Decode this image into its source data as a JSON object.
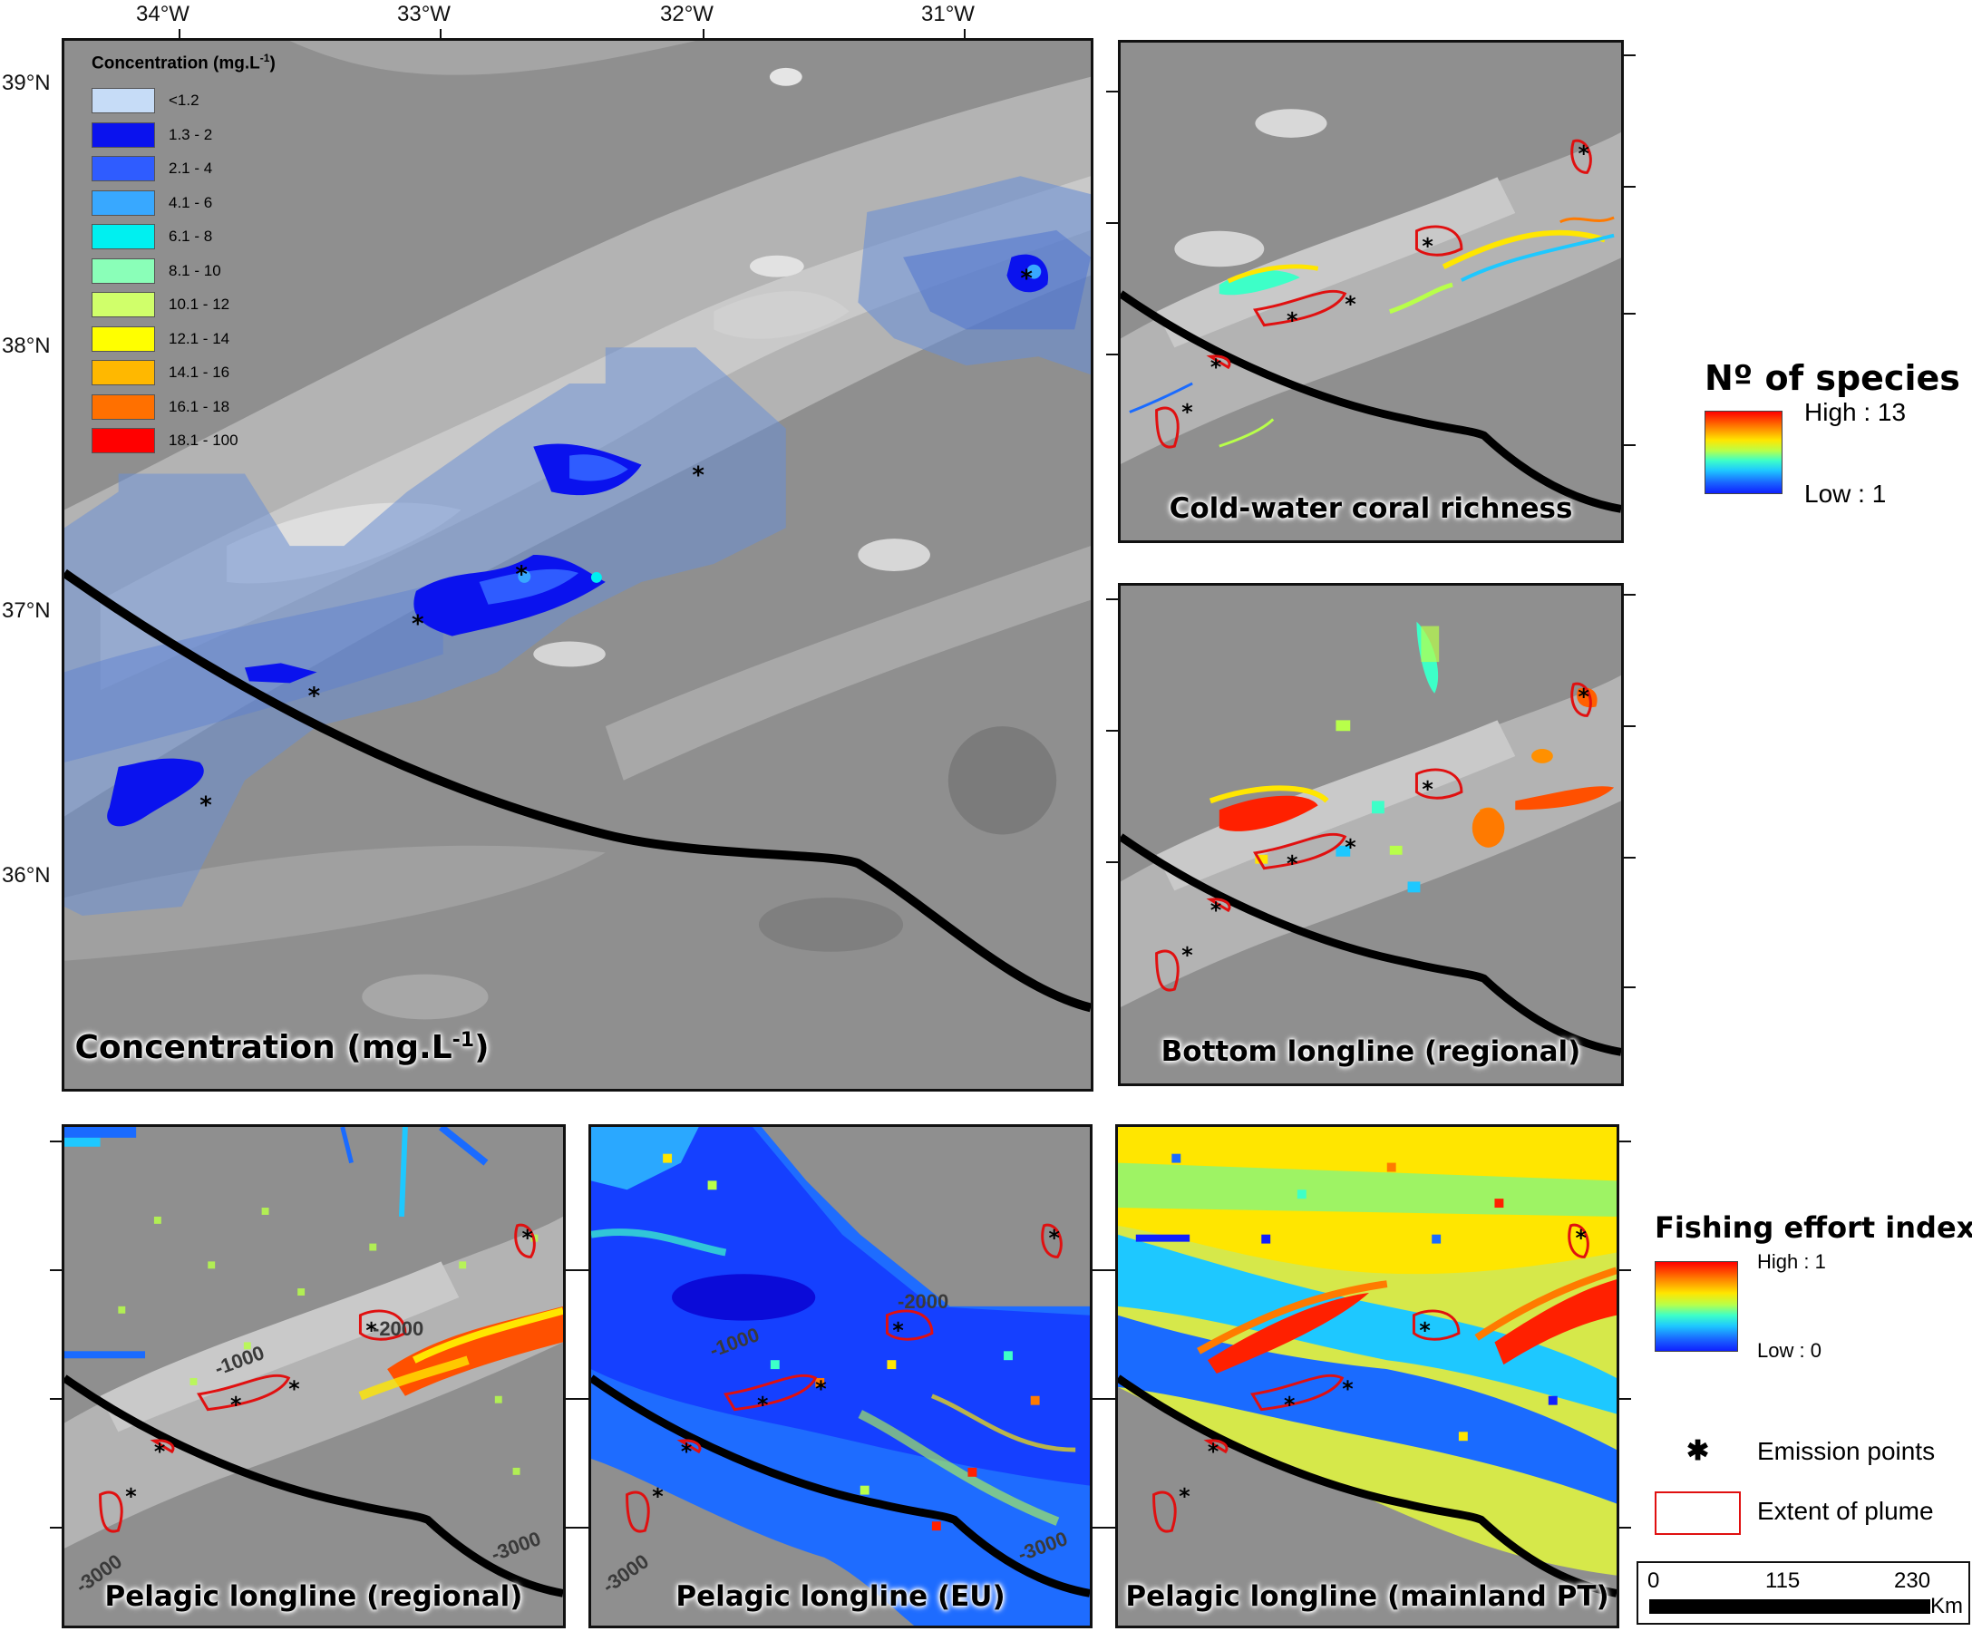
{
  "main_map": {
    "title_prefix": "Concentration (mg.L",
    "title_sup": "-1",
    "title_suffix": ")",
    "lon_labels": [
      "34°W",
      "33°W",
      "32°W",
      "31°W"
    ],
    "lat_labels": [
      "39°N",
      "38°N",
      "37°N",
      "36°N"
    ],
    "legend": {
      "title_prefix": "Concentration (mg.L",
      "title_sup": "-1",
      "title_suffix": ")",
      "items": [
        {
          "label": "<1.2",
          "color": "#c6dcf7"
        },
        {
          "label": "1.3 - 2",
          "color": "#0a12ee"
        },
        {
          "label": "2.1 - 4",
          "color": "#2f5cff"
        },
        {
          "label": "4.1 - 6",
          "color": "#38a8ff"
        },
        {
          "label": "6.1 - 8",
          "color": "#00f0f0"
        },
        {
          "label": "8.1 - 10",
          "color": "#8affb8"
        },
        {
          "label": "10.1 - 12",
          "color": "#d0ff6a"
        },
        {
          "label": "12.1 - 14",
          "color": "#ffff00"
        },
        {
          "label": "14.1 - 16",
          "color": "#ffb800"
        },
        {
          "label": "16.1 - 18",
          "color": "#ff7000"
        },
        {
          "label": "18.1 - 100",
          "color": "#ff0000"
        }
      ]
    }
  },
  "panels": {
    "coral": {
      "title": "Cold-water coral richness"
    },
    "bottom": {
      "title": "Bottom longline (regional)"
    },
    "pel_regional": {
      "title": "Pelagic longline (regional)",
      "contours": [
        "-1000",
        "-2000",
        "-3000",
        "-3000"
      ]
    },
    "pel_eu": {
      "title": "Pelagic longline (EU)",
      "contours": [
        "-1000",
        "-2000",
        "-3000",
        "-3000"
      ]
    },
    "pel_pt": {
      "title": "Pelagic longline (mainland PT)"
    }
  },
  "species_legend": {
    "title": "Nº of species",
    "high": "High : 13",
    "low": "Low : 1"
  },
  "fishing_legend": {
    "title": "Fishing effort index",
    "high": "High : 1",
    "low": "Low : 0",
    "emission": "Emission points",
    "plume": "Extent of plume"
  },
  "scale_bar": {
    "labels": [
      "0",
      "115",
      "230"
    ],
    "unit": "Km"
  }
}
